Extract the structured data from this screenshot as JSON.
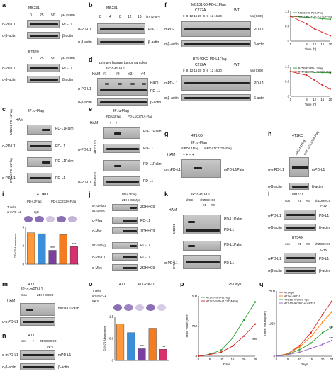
{
  "panels": {
    "a": {
      "letter": "a",
      "cell1": "MB231",
      "cell2": "BT549",
      "doses": [
        "0",
        "25",
        "50"
      ],
      "dose_unit": "μM (2-BP)",
      "row_pdl1": "α-PD-L1",
      "row_actin": "α-β-actin",
      "ann_pdl1": "PD-L1",
      "ann_actin": "β-actin"
    },
    "b": {
      "letter": "b",
      "cell": "MB231",
      "times": [
        "0",
        "4",
        "8",
        "12",
        "16"
      ],
      "time_unit": "hrs (2-BP)",
      "row_pdl1": "α-PD-L1",
      "row_actin": "α-β-actin",
      "ann_pdl1": "PD-L1",
      "ann_actin": "β-actin"
    },
    "c": {
      "letter": "c",
      "ip": "IP: α-Flag",
      "ham": "HAM",
      "cell1": "MB231-PD-L1Flag",
      "cell2": "BT549-PD-L1Flag",
      "ann_palm": "PD-L1Palm",
      "ann_pdl1": "PD-L1",
      "row_pdl1": "α-PD-L1"
    },
    "d": {
      "letter": "d",
      "title": "primary human tumor samples",
      "ip": "IP: α-PD-L1",
      "ham": "HAM",
      "samples": [
        "#1",
        "#2",
        "#3",
        "#4"
      ],
      "ann_palm": "Palm",
      "ann_pdl1": "PD-L1",
      "ann_actin": "β-actin",
      "row_pdl1": "α-PD-L1",
      "row_actin": "α-β-actin"
    },
    "e": {
      "letter": "e",
      "ip": "IP: α-Flag",
      "constructs": [
        "PD-L1Flag",
        "PD-L1C272A-Flag"
      ],
      "ham": "HAM",
      "cell1": "MB231KO",
      "cell2": "BT549KO",
      "ann_palm": "PD-L1Palm",
      "ann_pdl1": "PD-L1",
      "row_pdl1": "α-PD-L1"
    },
    "f": {
      "letter": "f",
      "cell1": "MB231KO-PD-L1Flag",
      "cell2": "BT549KO-PD-L1Flag",
      "groups": [
        "C272A",
        "WT"
      ],
      "times": [
        "0",
        "8",
        "12",
        "16",
        "20",
        "0",
        "8",
        "12",
        "16",
        "20"
      ],
      "time_unit": "hrs (CHX)",
      "row_pdl1": "α-PD-L1",
      "row_actin": "α-β-actin",
      "ann_pdl1": "PD-L1",
      "ann_actin": "β-actin",
      "ylabel": "PD-L1 relative protein level",
      "xlabel": "Time (h)"
    },
    "g": {
      "letter": "g",
      "cell": "4T1KO",
      "ip": "IP: α-Flag",
      "constructs": [
        "mPD-L1Flag",
        "mPD-L1C272A-Flag"
      ],
      "ham": "HAM",
      "ann_palm": "mPD-L1Palm",
      "row": "α-mPD-L1"
    },
    "h": {
      "letter": "h",
      "cell": "4T1KO",
      "constructs": [
        "mPD-L1Flag",
        "mPD-L1C272A-Flag"
      ],
      "row_pdl1": "α-mPD-L1",
      "row_actin": "α-β-actin",
      "ann_pdl1": "mPD-L1",
      "ann_actin": "β-actin"
    },
    "i": {
      "letter": "i",
      "cell": "4T1KO",
      "groups": [
        "PD-L1Flag",
        "PD-L1C272A-Flag"
      ],
      "rows": [
        "T cells",
        "α-mPD-L1",
        "IgG"
      ],
      "ylabel": "OD570 Absorbance",
      "sig": [
        "***",
        "***"
      ]
    },
    "j": {
      "letter": "j",
      "ip": "IP: α-Flag",
      "ib": "IB: α-Myc",
      "constructs": [
        "PD-L1Flag",
        "ZDHHC9Myc"
      ],
      "ann_zdhhc9": "ZDHHC9",
      "ann_pdl1": "PD-L1",
      "row_flag": "α-Flag",
      "row_myc": "α-Myc",
      "row_pdl1": "α-PD-L1"
    },
    "k": {
      "letter": "k",
      "ip": "IP: α-PD-L1",
      "shctr": "shCtr",
      "shzdhhc9": "shZDHHC9",
      "clones": [
        "#1",
        "#3"
      ],
      "ham": "HAM",
      "cell1": "MB231",
      "cell2": "BT549",
      "ann_palm": "PD-L1Palm",
      "ann_pdl1": "PD-L1",
      "row_pdl1": "α-PD-L1"
    },
    "l": {
      "letter": "l",
      "cell1": "MB231",
      "cell2": "BT549",
      "lanes": [
        "con",
        "#1",
        "#3"
      ],
      "sh": "shZDHHC9",
      "chx": "CHX",
      "row_pdl1": "α-PD-L1",
      "row_actin": "α-β-actin",
      "ann_pdl1": "PD-L1",
      "ann_actin": "β-actin"
    },
    "m": {
      "letter": "m",
      "cell": "4T1",
      "ip": "IP: α-mPD-L1",
      "lanes": [
        "Con",
        "ZDHHC9KO"
      ],
      "ham": "HAM",
      "ann_palm": "mPD-L1Palm",
      "row": "α-mPD-L1"
    },
    "n": {
      "letter": "n",
      "cell": "4T1",
      "lanes": [
        "con",
        "+"
      ],
      "ko": "ZDHHC9KO",
      "ifn": "INFγ",
      "row_pdl1": "α-mPD-L1",
      "row_actin": "α-β-actin",
      "ann_pdl1": "mPD-L1",
      "ann_actin": "β-actin"
    },
    "o": {
      "letter": "o",
      "cells": [
        "4T1",
        "4T1-Z9KO"
      ],
      "rows": [
        "T cells",
        "α-mPD-L1",
        "INFγ"
      ],
      "ylabel": "OD570 Absorbance",
      "sig": [
        "***",
        "***"
      ]
    },
    "p": {
      "letter": "p",
      "xlabel": "Days",
      "ylabel": "Tumor Volum (mm³)",
      "end_day": "25 Days",
      "sig": "***"
    },
    "q": {
      "letter": "q",
      "xlabel": "Days",
      "ylabel": "Tumor Volum (mm³)",
      "sig": [
        "***",
        "***"
      ]
    }
  },
  "chart_data": [
    {
      "type": "line",
      "panel": "f-top",
      "x": [
        0,
        8,
        12,
        16,
        20
      ],
      "xlabel": "Time (h)",
      "ylabel": "PD-L1 relative protein level",
      "ylim": [
        0,
        1.2
      ],
      "series": [
        {
          "name": "MB231KO-PD-L1Flag",
          "color": "#2ca02c",
          "values": [
            1.0,
            0.96,
            0.93,
            0.9,
            0.88
          ]
        },
        {
          "name": "MB231KO-PD-L1C272A-Flag",
          "color": "#d62728",
          "values": [
            1.0,
            0.7,
            0.5,
            0.35,
            0.22
          ]
        }
      ]
    },
    {
      "type": "line",
      "panel": "f-bottom",
      "x": [
        0,
        8,
        12,
        16,
        20
      ],
      "xlabel": "Time (h)",
      "ylabel": "PD-L1 relative protein level",
      "ylim": [
        0,
        1.2
      ],
      "series": [
        {
          "name": "BT549KO-PD-L1Flag",
          "color": "#2ca02c",
          "values": [
            1.0,
            0.98,
            0.97,
            0.96,
            0.95
          ]
        },
        {
          "name": "BT549KO-PD-L1C272A-Flag",
          "color": "#d62728",
          "values": [
            1.0,
            0.85,
            0.65,
            0.45,
            0.3
          ]
        }
      ]
    },
    {
      "type": "bar",
      "panel": "i",
      "ylabel": "OD570 Absorbance",
      "ylim": [
        0,
        4
      ],
      "values": [
        3.4,
        3.3,
        1.5,
        3.2,
        1.9
      ],
      "colors": [
        "#ff9a3c",
        "#3a8fd8",
        "#7b3fa0",
        "#f47c20",
        "#d6306f"
      ]
    },
    {
      "type": "bar",
      "panel": "o",
      "ylabel": "OD570 Absorbance",
      "ylim": [
        0,
        1.5
      ],
      "values": [
        1.25,
        0.95,
        0.4,
        1.1,
        0.38
      ],
      "colors": [
        "#ff9a3c",
        "#3a8fd8",
        "#7b3fa0",
        "#f47c20",
        "#d6306f"
      ]
    },
    {
      "type": "line",
      "panel": "p",
      "xlabel": "Days",
      "ylabel": "Tumor Volum (mm³)",
      "x": [
        0,
        5,
        10,
        15,
        20,
        25
      ],
      "ylim": [
        0,
        1500
      ],
      "series": [
        {
          "name": "4T1KO-mPD-L1Flag",
          "color": "#2ca02c",
          "values": [
            0,
            50,
            150,
            450,
            900,
            1350
          ]
        },
        {
          "name": "4T1KO-mPD-L1C272A-Flag",
          "color": "#d62728",
          "values": [
            0,
            40,
            100,
            250,
            500,
            800
          ]
        }
      ]
    },
    {
      "type": "line",
      "panel": "q",
      "xlabel": "Days",
      "ylabel": "Tumor Volum (mm³)",
      "x": [
        0,
        5,
        10,
        15,
        20,
        24
      ],
      "ylim": [
        0,
        2500
      ],
      "series": [
        {
          "name": "4T1+IgG",
          "color": "#d62728",
          "values": [
            0,
            100,
            400,
            900,
            1600,
            2100
          ]
        },
        {
          "name": "4T1+α-mPD-1",
          "color": "#ff7f0e",
          "values": [
            0,
            90,
            350,
            750,
            1300,
            1700
          ]
        },
        {
          "name": "4T1-ZDHHC9KO+IgG",
          "color": "#2ca02c",
          "values": [
            0,
            70,
            250,
            500,
            900,
            1100
          ]
        },
        {
          "name": "4T1-ZDHHC9KO+α-mPD-1",
          "color": "#9467bd",
          "values": [
            0,
            60,
            150,
            300,
            450,
            600
          ]
        }
      ]
    }
  ]
}
